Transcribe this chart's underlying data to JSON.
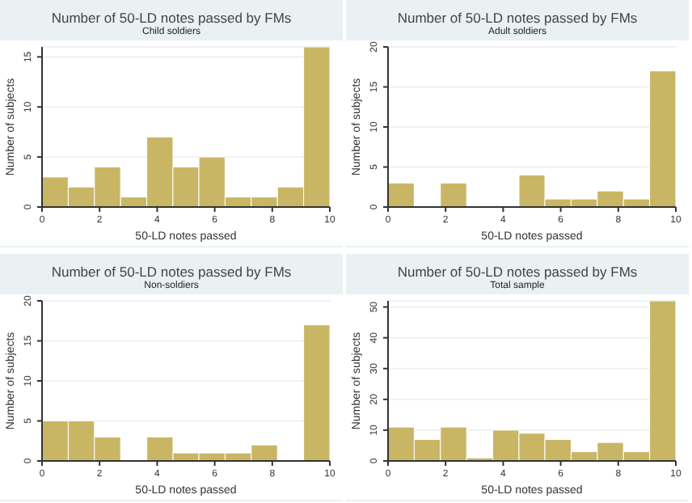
{
  "chart_data": [
    {
      "type": "histogram",
      "title": "Number of 50-LD notes passed by FMs",
      "subtitle": "Child soldiers",
      "xlabel": "50-LD notes passed",
      "ylabel": "Number of subjects",
      "bins": [
        0,
        0.91,
        1.82,
        2.73,
        3.64,
        4.55,
        5.45,
        6.36,
        7.27,
        8.18,
        9.09,
        10
      ],
      "values": [
        3,
        2,
        4,
        1,
        7,
        4,
        5,
        1,
        1,
        2,
        16
      ],
      "color": "#c9b664",
      "xlim": [
        0,
        10
      ],
      "xticks": [
        0,
        2,
        4,
        6,
        8,
        10
      ],
      "ylim": [
        0,
        16
      ],
      "yticks": [
        0,
        5,
        10,
        15
      ],
      "grid": "y"
    },
    {
      "type": "histogram",
      "title": "Number of 50-LD notes passed by FMs",
      "subtitle": "Adult soldiers",
      "xlabel": "50-LD notes passed",
      "ylabel": "Number of subjects",
      "bins": [
        0,
        0.91,
        1.82,
        2.73,
        3.64,
        4.55,
        5.45,
        6.36,
        7.27,
        8.18,
        9.09,
        10
      ],
      "values": [
        3,
        0,
        3,
        0,
        0,
        4,
        1,
        1,
        2,
        1,
        17
      ],
      "color": "#c9b664",
      "xlim": [
        0,
        10
      ],
      "xticks": [
        0,
        2,
        4,
        6,
        8,
        10
      ],
      "ylim": [
        0,
        20
      ],
      "yticks": [
        0,
        5,
        10,
        15,
        20
      ],
      "grid": "y"
    },
    {
      "type": "histogram",
      "title": "Number of 50-LD notes passed by FMs",
      "subtitle": "Non-soldiers",
      "xlabel": "50-LD notes passed",
      "ylabel": "Number of subjects",
      "bins": [
        0,
        0.91,
        1.82,
        2.73,
        3.64,
        4.55,
        5.45,
        6.36,
        7.27,
        8.18,
        9.09,
        10
      ],
      "values": [
        5,
        5,
        3,
        0,
        3,
        1,
        1,
        1,
        2,
        0,
        17
      ],
      "color": "#c9b664",
      "xlim": [
        0,
        10
      ],
      "xticks": [
        0,
        2,
        4,
        6,
        8,
        10
      ],
      "ylim": [
        0,
        20
      ],
      "yticks": [
        0,
        5,
        10,
        15,
        20
      ],
      "grid": "y"
    },
    {
      "type": "histogram",
      "title": "Number of 50-LD notes passed by FMs",
      "subtitle": "Total sample",
      "xlabel": "50-LD notes passed",
      "ylabel": "Number of subjects",
      "bins": [
        0,
        0.91,
        1.82,
        2.73,
        3.64,
        4.55,
        5.45,
        6.36,
        7.27,
        8.18,
        9.09,
        10
      ],
      "values": [
        11,
        7,
        11,
        1,
        10,
        9,
        7,
        3,
        6,
        3,
        52
      ],
      "color": "#c9b664",
      "xlim": [
        0,
        10
      ],
      "xticks": [
        0,
        2,
        4,
        6,
        8,
        10
      ],
      "ylim": [
        0,
        52
      ],
      "yticks": [
        0,
        10,
        20,
        30,
        40,
        50
      ],
      "grid": "y"
    }
  ]
}
